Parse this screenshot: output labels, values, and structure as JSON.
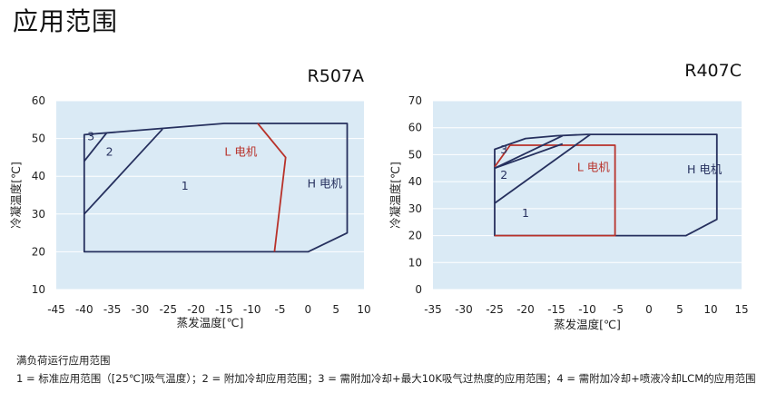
{
  "page": {
    "title": "应用范围",
    "footer_heading": "满负荷运行应用范围",
    "footer_legend": "1 = 标准应用范围（[25℃]吸气温度）；2 = 附加冷却应用范围；3 = 需附加冷却+最大10K吸气过热度的应用范围；4 = 需附加冷却+喷液冷却LCM的应用范围"
  },
  "colors": {
    "plot_bg": "#daeaf5",
    "grid": "#ffffff",
    "envelope": "#26305e",
    "l_motor": "#b8322a",
    "text": "#222222"
  },
  "chart_data": [
    {
      "type": "area",
      "title": "R507A",
      "xlabel": "蒸发温度[℃]",
      "ylabel": "冷凝温度[℃]",
      "xlim": [
        -45,
        10
      ],
      "ylim": [
        10,
        60
      ],
      "xticks": [
        -45,
        -40,
        -35,
        -30,
        -25,
        -20,
        -15,
        -10,
        -5,
        0,
        5,
        10
      ],
      "yticks": [
        10,
        20,
        30,
        40,
        50,
        60
      ],
      "series": [
        {
          "name": "H 电机",
          "color": "envelope",
          "closed": true,
          "x": [
            -40,
            -40,
            -40,
            -40,
            -15,
            7,
            7,
            7,
            7,
            0,
            -40
          ],
          "y": [
            20,
            30,
            45,
            51,
            54,
            54,
            30,
            25,
            25,
            20,
            20
          ]
        },
        {
          "name": "L 电机",
          "color": "l_motor",
          "closed": false,
          "x": [
            -9,
            -4,
            -6
          ],
          "y": [
            54,
            45,
            20
          ]
        },
        {
          "name": "region-2-boundary",
          "color": "envelope",
          "closed": false,
          "x": [
            -40,
            -26
          ],
          "y": [
            30,
            52.5
          ]
        },
        {
          "name": "region-3-boundary",
          "color": "envelope",
          "closed": false,
          "x": [
            -40,
            -36
          ],
          "y": [
            44,
            51.5
          ]
        }
      ],
      "annotations": [
        {
          "text": "3",
          "x": -38.8,
          "y": 49.5,
          "color": "envelope"
        },
        {
          "text": "2",
          "x": -35.5,
          "y": 45.5,
          "color": "envelope"
        },
        {
          "text": "1",
          "x": -22,
          "y": 36.5,
          "color": "envelope"
        },
        {
          "text": "L 电机",
          "x": -12,
          "y": 45.5,
          "color": "l_motor"
        },
        {
          "text": "H 电机",
          "x": 3,
          "y": 37,
          "color": "envelope"
        }
      ]
    },
    {
      "type": "area",
      "title": "R407C",
      "xlabel": "蒸发温度[℃]",
      "ylabel": "冷凝温度[℃]",
      "xlim": [
        -35,
        15
      ],
      "ylim": [
        0,
        70
      ],
      "xticks": [
        -35,
        -30,
        -25,
        -20,
        -15,
        -10,
        -5,
        0,
        5,
        10,
        15
      ],
      "yticks": [
        0,
        10,
        20,
        30,
        40,
        50,
        60,
        70
      ],
      "series": [
        {
          "name": "H 电机",
          "color": "envelope",
          "closed": true,
          "x": [
            -25,
            -25,
            -25,
            -20,
            -15,
            -10,
            11,
            11,
            6,
            -25
          ],
          "y": [
            20,
            40,
            52,
            56,
            57,
            57.5,
            57.5,
            26,
            20,
            20
          ]
        },
        {
          "name": "L 电机",
          "color": "l_motor",
          "closed": false,
          "x": [
            -25,
            -22.5,
            -5.5,
            -5.5,
            -25
          ],
          "y": [
            45.5,
            53.5,
            53.5,
            20,
            20
          ]
        },
        {
          "name": "region-2-boundary",
          "color": "envelope",
          "closed": false,
          "x": [
            -25,
            -9.5
          ],
          "y": [
            32,
            57.5
          ]
        },
        {
          "name": "region-3-boundary",
          "color": "envelope",
          "closed": false,
          "x": [
            -25,
            -14
          ],
          "y": [
            45,
            57
          ]
        },
        {
          "name": "region-3-inner",
          "color": "envelope",
          "closed": false,
          "x": [
            -25,
            -14
          ],
          "y": [
            45,
            54
          ]
        }
      ],
      "annotations": [
        {
          "text": "3",
          "x": -23.5,
          "y": 50.5,
          "color": "envelope"
        },
        {
          "text": "2",
          "x": -23.5,
          "y": 41,
          "color": "envelope"
        },
        {
          "text": "1",
          "x": -20,
          "y": 27,
          "color": "envelope"
        },
        {
          "text": "L 电机",
          "x": -9,
          "y": 44,
          "color": "l_motor"
        },
        {
          "text": "H 电机",
          "x": 9,
          "y": 43,
          "color": "envelope"
        }
      ]
    }
  ]
}
